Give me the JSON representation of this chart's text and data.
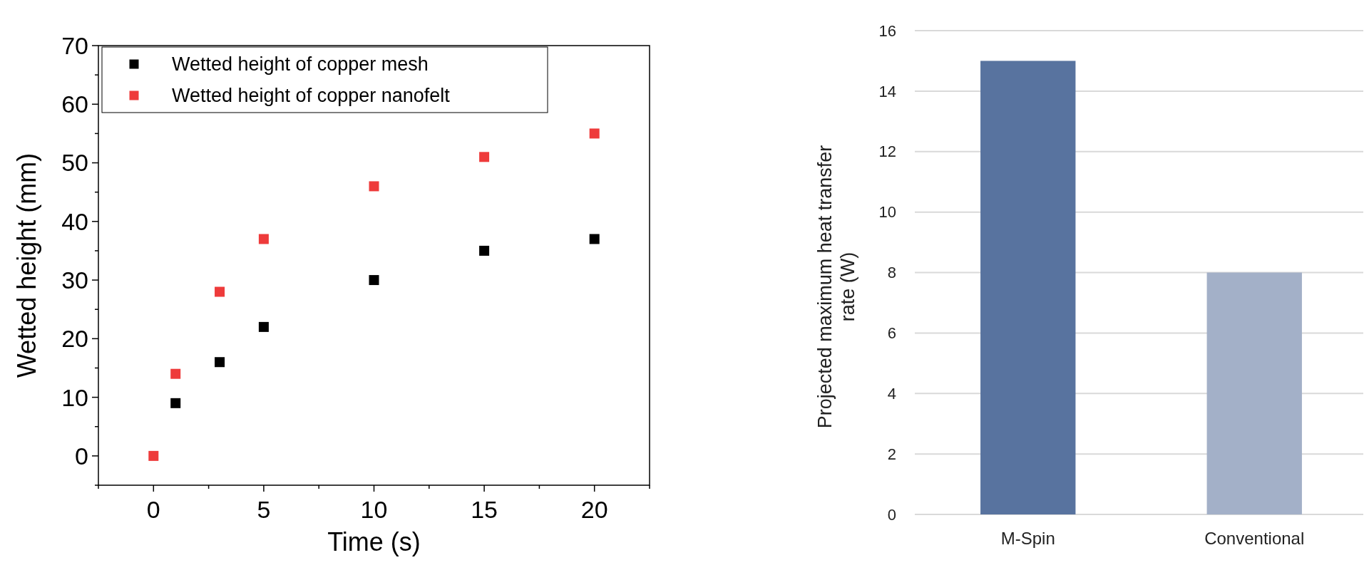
{
  "chart_data": [
    {
      "type": "scatter",
      "xlabel": "Time (s)",
      "ylabel": "Wetted height (mm)",
      "xlim": [
        -2.5,
        22.5
      ],
      "ylim": [
        -5,
        70
      ],
      "xticks": [
        {
          "value": -2.5,
          "label": null
        },
        0,
        {
          "value": 2.5,
          "label": null
        },
        5,
        {
          "value": 7.5,
          "label": null
        },
        10,
        {
          "value": 12.5,
          "label": null
        },
        15,
        {
          "value": 17.5,
          "label": null
        },
        20,
        {
          "value": 22.5,
          "label": null
        }
      ],
      "yticks": [
        {
          "value": -5,
          "label": null
        },
        0,
        {
          "value": 5,
          "label": null
        },
        10,
        {
          "value": 15,
          "label": null
        },
        20,
        {
          "value": 25,
          "label": null
        },
        30,
        {
          "value": 35,
          "label": null
        },
        40,
        {
          "value": 45,
          "label": null
        },
        50,
        {
          "value": 55,
          "label": null
        },
        60,
        {
          "value": 65,
          "label": null
        },
        70
      ],
      "marker": "square",
      "legend": "top left",
      "grid": false,
      "series": [
        {
          "name": "Wetted height of copper mesh",
          "color": "#000000",
          "x": [
            1,
            3,
            5,
            10,
            15,
            20
          ],
          "values": [
            9,
            16,
            22,
            30,
            35,
            37
          ]
        },
        {
          "name": "Wetted height of copper nanofelt",
          "color": "#ee3b3b",
          "x": [
            0,
            1,
            3,
            5,
            10,
            15,
            20
          ],
          "values": [
            0,
            14,
            28,
            37,
            46,
            51,
            55
          ]
        }
      ]
    },
    {
      "type": "bar",
      "ylabel": "Projected maximum  heat transfer\nrate (W)",
      "categories": [
        "M-Spin",
        "Conventional"
      ],
      "values": [
        15,
        8
      ],
      "colors": [
        "#58739f",
        "#a3b0c8"
      ],
      "ylim": [
        0,
        16
      ],
      "yticks": [
        0,
        2,
        4,
        6,
        8,
        10,
        12,
        14,
        16
      ],
      "grid": "y"
    }
  ]
}
